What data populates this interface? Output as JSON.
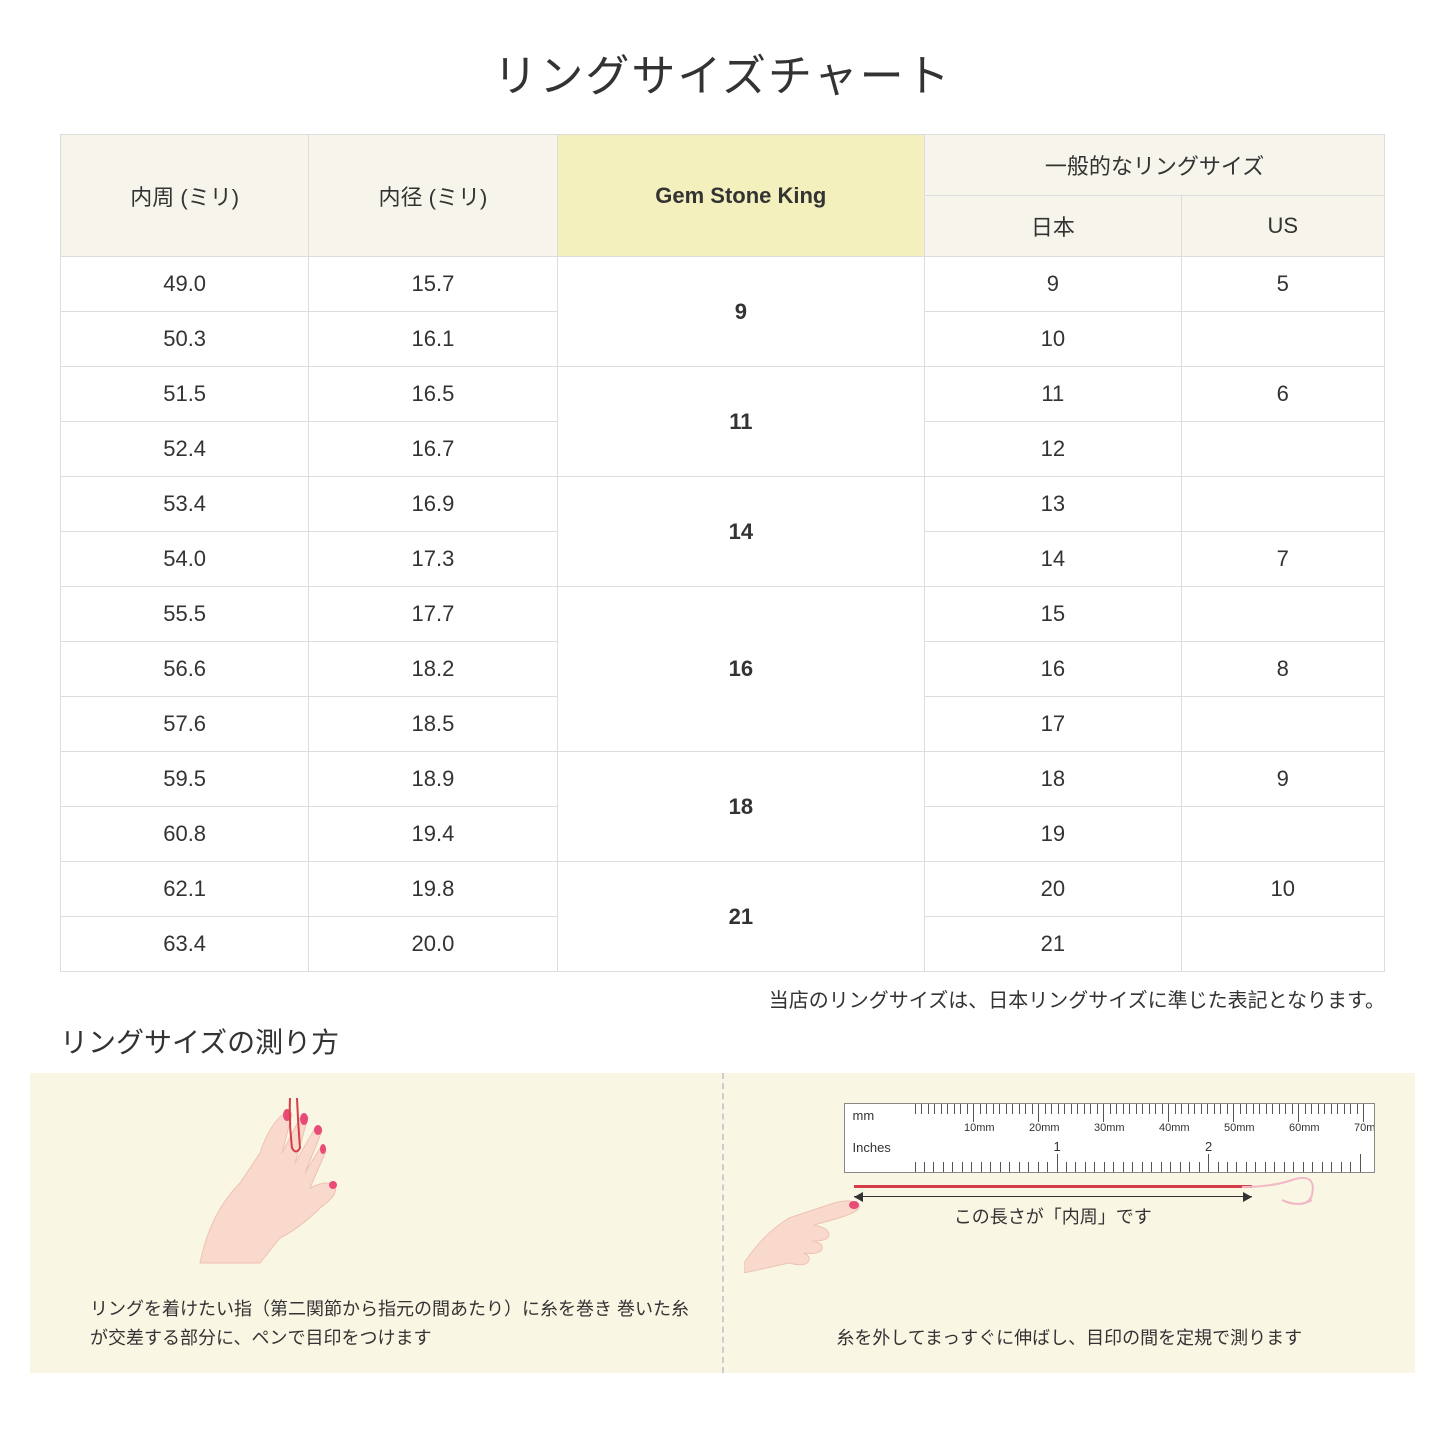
{
  "title": "リングサイズチャート",
  "headers": {
    "circumference": "内周 (ミリ)",
    "diameter": "内径 (ミリ)",
    "gsk": "Gem Stone King",
    "general": "一般的なリングサイズ",
    "japan": "日本",
    "us": "US"
  },
  "rows": [
    {
      "circ": "49.0",
      "diam": "15.7",
      "gsk": "9",
      "gsk_span": 2,
      "jp": "9",
      "us": "5"
    },
    {
      "circ": "50.3",
      "diam": "16.1",
      "jp": "10",
      "us": ""
    },
    {
      "circ": "51.5",
      "diam": "16.5",
      "gsk": "11",
      "gsk_span": 2,
      "jp": "11",
      "us": "6"
    },
    {
      "circ": "52.4",
      "diam": "16.7",
      "jp": "12",
      "us": ""
    },
    {
      "circ": "53.4",
      "diam": "16.9",
      "gsk": "14",
      "gsk_span": 2,
      "jp": "13",
      "us": ""
    },
    {
      "circ": "54.0",
      "diam": "17.3",
      "jp": "14",
      "us": "7"
    },
    {
      "circ": "55.5",
      "diam": "17.7",
      "gsk": "16",
      "gsk_span": 3,
      "jp": "15",
      "us": ""
    },
    {
      "circ": "56.6",
      "diam": "18.2",
      "jp": "16",
      "us": "8"
    },
    {
      "circ": "57.6",
      "diam": "18.5",
      "jp": "17",
      "us": ""
    },
    {
      "circ": "59.5",
      "diam": "18.9",
      "gsk": "18",
      "gsk_span": 2,
      "jp": "18",
      "us": "9"
    },
    {
      "circ": "60.8",
      "diam": "19.4",
      "jp": "19",
      "us": ""
    },
    {
      "circ": "62.1",
      "diam": "19.8",
      "gsk": "21",
      "gsk_span": 2,
      "jp": "20",
      "us": "10"
    },
    {
      "circ": "63.4",
      "diam": "20.0",
      "jp": "21",
      "us": ""
    }
  ],
  "note": "当店のリングサイズは、日本リングサイズに準じた表記となります。",
  "howto": {
    "title": "リングサイズの測り方",
    "left_text": "リングを着けたい指（第二関節から指元の間あたり）に糸を巻き\n巻いた糸が交差する部分に、ペンで目印をつけます",
    "right_text": "糸を外してまっすぐに伸ばし、目印の間を定規で測ります",
    "measure_label": "この長さが「内周」です",
    "ruler_mm_label": "mm",
    "ruler_in_label": "Inches",
    "mm_marks": [
      "10mm",
      "20mm",
      "30mm",
      "40mm",
      "50mm",
      "60mm",
      "70mm"
    ],
    "inch_marks": [
      "1",
      "2"
    ]
  },
  "colors": {
    "header_bg": "#f6f4eb",
    "highlight_bg": "#f3f0bd",
    "howto_bg": "#faf6e4",
    "thread": "#d63d4a",
    "skin": "#f8d9cc",
    "skin_shadow": "#eec2b3",
    "nail": "#e94b77"
  }
}
